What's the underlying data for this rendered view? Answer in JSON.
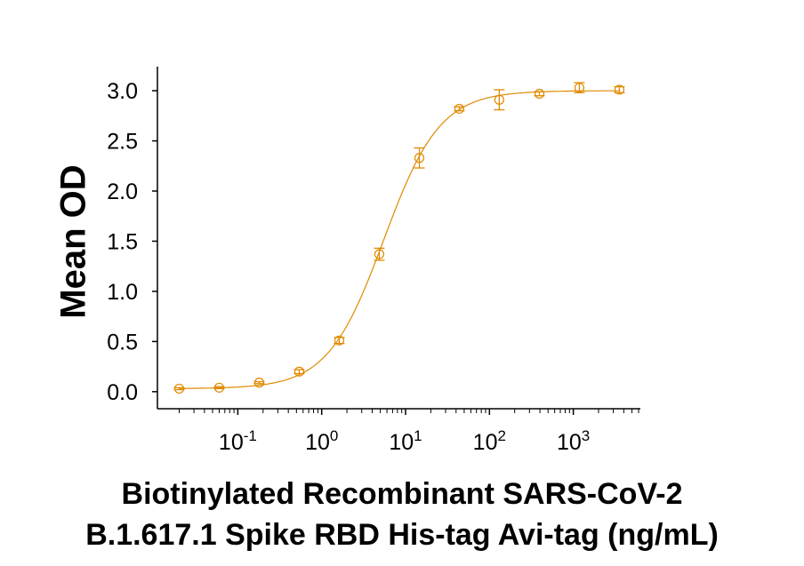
{
  "chart_data": {
    "type": "scatter",
    "title": "",
    "xlabel_lines": [
      "Biotinylated Recombinant SARS-CoV-2",
      "B.1.617.1 Spike RBD His-tag Avi-tag (ng/mL)"
    ],
    "ylabel": "Mean OD",
    "x_scale": "log",
    "xlim": [
      0.011,
      6300
    ],
    "ylim": [
      -0.17,
      3.24
    ],
    "x_ticks": [
      {
        "exp": "-1",
        "value": 0.1
      },
      {
        "exp": "0",
        "value": 1
      },
      {
        "exp": "1",
        "value": 10
      },
      {
        "exp": "2",
        "value": 100
      },
      {
        "exp": "3",
        "value": 1000
      }
    ],
    "y_ticks": [
      "0.0",
      "0.5",
      "1.0",
      "1.5",
      "2.0",
      "2.5",
      "3.0"
    ],
    "grid": false,
    "color": "#E08A00",
    "series": [
      {
        "x": [
          0.02,
          0.06,
          0.18,
          0.54,
          1.62,
          4.86,
          14.6,
          43.7,
          131,
          394,
          1181,
          3543
        ],
        "y": [
          0.03,
          0.04,
          0.09,
          0.2,
          0.51,
          1.37,
          2.33,
          2.82,
          2.91,
          2.97,
          3.03,
          3.01
        ],
        "error": [
          0.01,
          0.01,
          0.01,
          0.02,
          0.03,
          0.06,
          0.1,
          0.02,
          0.1,
          0.02,
          0.05,
          0.03
        ]
      }
    ],
    "fit": {
      "model": "4PL",
      "bottom": 0.03,
      "top": 3.0,
      "ec50": 5.5,
      "hill": 1.3
    }
  }
}
